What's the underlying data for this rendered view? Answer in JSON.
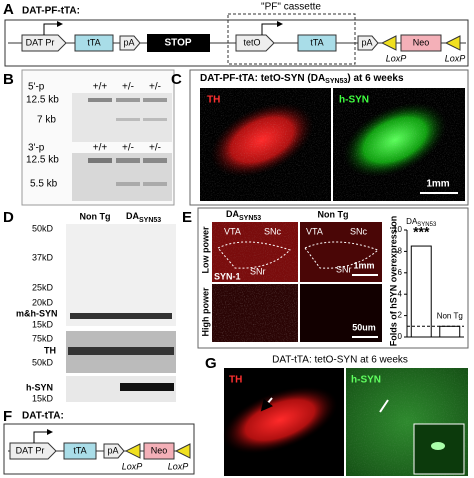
{
  "panel_a": {
    "label": "A",
    "title": "DAT-PF-tTA:",
    "cassette_label": "\"PF\" cassette",
    "elements": [
      "DAT Pr",
      "tTA",
      "pA",
      "STOP",
      "tetO",
      "tTA",
      "pA",
      "Neo"
    ],
    "loxp": [
      "LoxP",
      "LoxP"
    ]
  },
  "panel_b": {
    "label": "B",
    "top": {
      "probe": "5'-p",
      "lanes": [
        "+/+",
        "+/-",
        "+/-"
      ],
      "sizes": [
        "12.5 kb",
        "7 kb"
      ]
    },
    "bottom": {
      "probe": "3'-p",
      "lanes": [
        "+/+",
        "+/-",
        "+/-"
      ],
      "sizes": [
        "12.5 kb",
        "5.5 kb"
      ]
    }
  },
  "panel_c": {
    "label": "C",
    "title": {
      "prefix": "DAT-PF-tTA: tetO-SYN (DA",
      "subscript": "SYN53",
      "suffix": ") at 6 weeks"
    },
    "channels": [
      "TH",
      "h-SYN"
    ],
    "scale_bar": "1mm"
  },
  "panel_d": {
    "label": "D",
    "columns": {
      "control": "Non Tg",
      "transgenic": {
        "text": "DA",
        "subscript": "SYN53"
      }
    },
    "blots": [
      {
        "markers": [
          "50kD",
          "37kD",
          "25kD",
          "20kD",
          "15kD"
        ],
        "band": "m&h-SYN"
      },
      {
        "markers": [
          "75kD",
          "50kD"
        ],
        "band": "TH"
      },
      {
        "markers": [
          "15kD"
        ],
        "band": "h-SYN"
      }
    ]
  },
  "panel_e": {
    "label": "E",
    "columns": {
      "transgenic": {
        "text": "DA",
        "subscript": "SYN53"
      },
      "control": "Non Tg"
    },
    "rows": [
      "Low power",
      "High power"
    ],
    "regions_left": [
      "VTA",
      "SNc",
      "SNr"
    ],
    "regions_right": [
      "VTA",
      "SNc",
      "SNr"
    ],
    "stain": "SYN-1",
    "scale_low": "1mm",
    "scale_high": "50um",
    "bar_chart": {
      "type": "bar",
      "ylabel": "Folds of hSYN overexpression",
      "categories": [
        {
          "text": "DA",
          "subscript": "SYN53"
        },
        "Non Tg"
      ],
      "values": [
        8.5,
        1.0
      ],
      "significance": "***",
      "reference_line": 1,
      "ylim": [
        0,
        10
      ],
      "yticks": [
        0,
        2,
        4,
        6,
        8,
        10
      ],
      "color": "#ffffff"
    }
  },
  "panel_f": {
    "label": "F",
    "title": "DAT-tTA:",
    "elements": [
      "DAT Pr",
      "tTA",
      "pA",
      "Neo"
    ],
    "loxp": [
      "LoxP",
      "LoxP"
    ]
  },
  "panel_g": {
    "label": "G",
    "title": "DAT-tTA: tetO-SYN at 6 weeks",
    "channels": [
      "TH",
      "h-SYN"
    ]
  }
}
